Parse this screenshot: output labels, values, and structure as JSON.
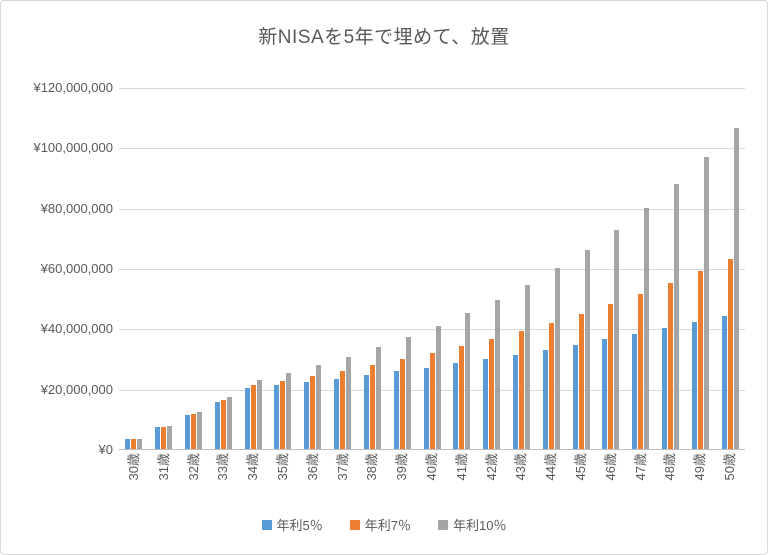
{
  "chart_data": {
    "type": "bar",
    "title": "新NISAを5年で埋めて、放置",
    "xlabel": "",
    "ylabel": "",
    "ylim": [
      0,
      120000000
    ],
    "ytick_interval": 20000000,
    "ytick_labels": [
      "¥0",
      "¥20,000,000",
      "¥40,000,000",
      "¥60,000,000",
      "¥80,000,000",
      "¥100,000,000",
      "¥120,000,000"
    ],
    "grid": true,
    "legend_position": "bottom",
    "categories": [
      "30歳",
      "31歳",
      "32歳",
      "33歳",
      "34歳",
      "35歳",
      "36歳",
      "37歳",
      "38歳",
      "39歳",
      "40歳",
      "41歳",
      "42歳",
      "43歳",
      "44歳",
      "45歳",
      "46歳",
      "47歳",
      "48歳",
      "49歳",
      "50歳"
    ],
    "series": [
      {
        "id": "rate5",
        "name": "年利5％",
        "color": "#5b9bd5",
        "values": [
          3680000,
          7560000,
          11630000,
          15900000,
          20400000,
          21420000,
          22490000,
          23620000,
          24800000,
          26040000,
          27340000,
          28710000,
          30140000,
          31650000,
          33230000,
          34890000,
          36640000,
          38470000,
          40390000,
          42410000,
          44540000
        ]
      },
      {
        "id": "rate7",
        "name": "年利7％",
        "color": "#ed7d31",
        "values": [
          3720000,
          7700000,
          11980000,
          16560000,
          21480000,
          22980000,
          24590000,
          26310000,
          28150000,
          30120000,
          32230000,
          34490000,
          36900000,
          39480000,
          42250000,
          45210000,
          48370000,
          51760000,
          55380000,
          59250000,
          63400000
        ]
      },
      {
        "id": "rate10",
        "name": "年利10％",
        "color": "#a5a5a5",
        "values": [
          3770000,
          7930000,
          12530000,
          17620000,
          23230000,
          25550000,
          28110000,
          30920000,
          34010000,
          37410000,
          41160000,
          45270000,
          49800000,
          54780000,
          60260000,
          66280000,
          72910000,
          80200000,
          88220000,
          97040000,
          106750000
        ]
      }
    ],
    "appearance": {
      "gridline_color": "#d9d9d9",
      "axis_line_color": "#bfbfbf",
      "text_color": "#595959",
      "background_color": "#ffffff"
    }
  }
}
